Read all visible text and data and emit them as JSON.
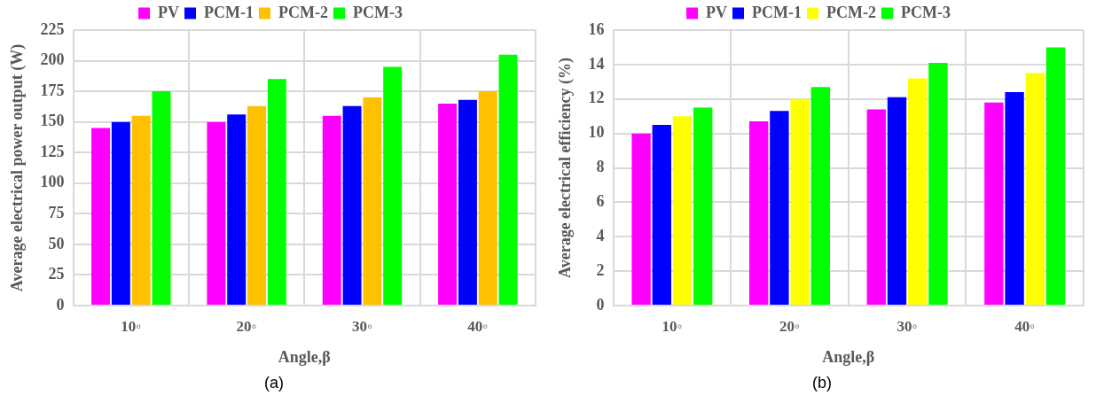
{
  "chart_data": [
    {
      "type": "bar",
      "xlabel": "Angle,β",
      "ylabel": "Average electrical power output (W)",
      "categories": [
        "10◦",
        "20◦",
        "30◦",
        "40◦"
      ],
      "series": [
        {
          "name": "PV",
          "color": "#ff00ff",
          "values": [
            145,
            150,
            155,
            165
          ]
        },
        {
          "name": "PCM-1",
          "color": "#0000ff",
          "values": [
            150,
            156,
            163,
            168
          ]
        },
        {
          "name": "PCM-2",
          "color": "#ffc000",
          "values": [
            155,
            163,
            170,
            175
          ]
        },
        {
          "name": "PCM-3",
          "color": "#00ff00",
          "values": [
            175,
            185,
            195,
            205
          ]
        }
      ],
      "ylim": [
        0,
        225
      ],
      "yticks": [
        0,
        25,
        50,
        75,
        100,
        125,
        150,
        175,
        200,
        225
      ],
      "grid": true,
      "legend": "top",
      "annotations": [
        "(a)"
      ]
    },
    {
      "type": "bar",
      "xlabel": "Angle,β",
      "ylabel": "Average electrical efficiency (%)",
      "categories": [
        "10◦",
        "20◦",
        "30◦",
        "40◦"
      ],
      "series": [
        {
          "name": "PV",
          "color": "#ff00ff",
          "values": [
            10,
            10.7,
            11.4,
            11.8
          ]
        },
        {
          "name": "PCM-1",
          "color": "#0000ff",
          "values": [
            10.5,
            11.3,
            12.1,
            12.4
          ]
        },
        {
          "name": "PCM-2",
          "color": "#ffff00",
          "values": [
            11,
            12,
            13.2,
            13.5
          ]
        },
        {
          "name": "PCM-3",
          "color": "#00ff00",
          "values": [
            11.5,
            12.7,
            14.1,
            15
          ]
        }
      ],
      "ylim": [
        0,
        16
      ],
      "yticks": [
        0,
        2,
        4,
        6,
        8,
        10,
        12,
        14,
        16
      ],
      "grid": true,
      "legend": "top",
      "annotations": [
        "(b)"
      ]
    }
  ]
}
